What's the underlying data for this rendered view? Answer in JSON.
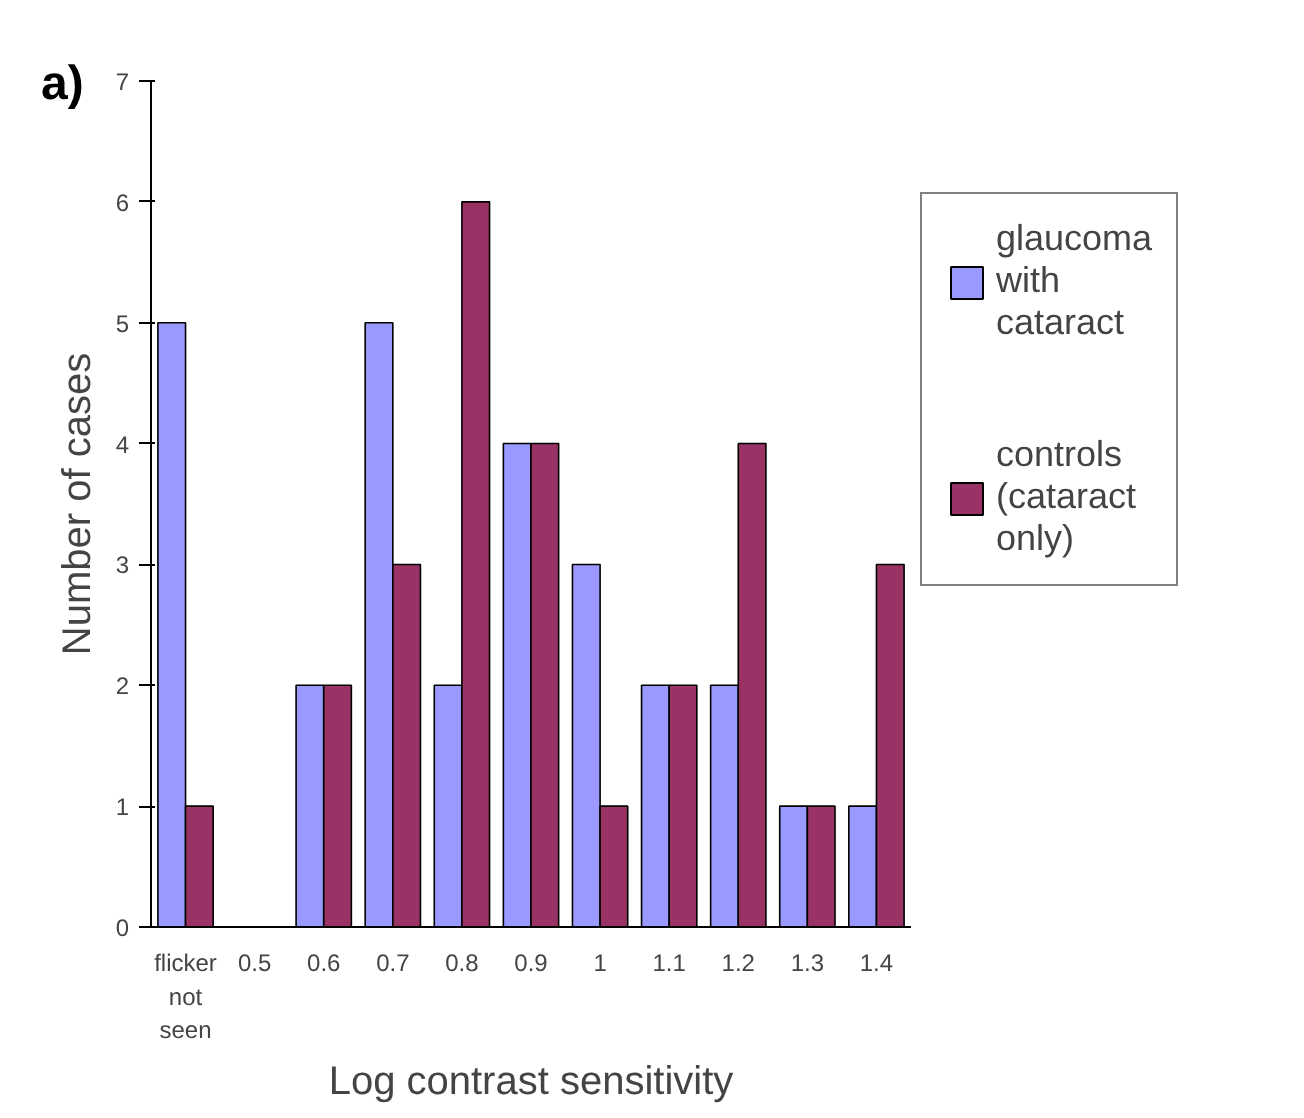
{
  "chart_data": {
    "type": "bar",
    "title": "a)",
    "xlabel": "Log contrast sensitivity",
    "ylabel": "Number of cases",
    "categories": [
      "flicker\nnot\nseen",
      "0.5",
      "0.6",
      "0.7",
      "0.8",
      "0.9",
      "1",
      "1.1",
      "1.2",
      "1.3",
      "1.4"
    ],
    "series": [
      {
        "name": "glaucoma\nwith\ncataract",
        "color": "#9999ff",
        "values": [
          5,
          0,
          2,
          5,
          2,
          4,
          3,
          2,
          2,
          1,
          1
        ]
      },
      {
        "name": "controls\n(cataract\nonly)",
        "color": "#993366",
        "values": [
          1,
          0,
          2,
          3,
          6,
          4,
          1,
          2,
          4,
          1,
          3
        ]
      }
    ],
    "ylim": [
      0,
      7
    ],
    "yticks": [
      0,
      1,
      2,
      3,
      4,
      5,
      6,
      7
    ],
    "grid": false,
    "legend": "right"
  }
}
